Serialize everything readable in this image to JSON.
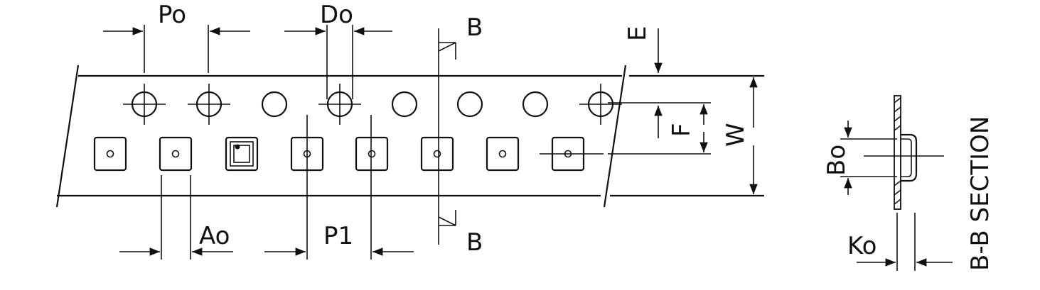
{
  "labels": {
    "po": "Po",
    "do": "Do",
    "b_top": "B",
    "b_bottom": "B",
    "e": "E",
    "f": "F",
    "w": "W",
    "ao": "Ao",
    "p1": "P1",
    "bo": "Bo",
    "ko": "Ko",
    "section": "B-B SECTION"
  },
  "colors": {
    "ink": "#111111",
    "background": "#ffffff"
  }
}
